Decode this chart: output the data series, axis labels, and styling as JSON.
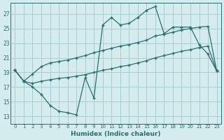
{
  "xlabel": "Humidex (Indice chaleur)",
  "background_color": "#d4ecee",
  "grid_color": "#aacdd2",
  "line_color": "#2a6e6e",
  "x_ticks": [
    0,
    1,
    2,
    3,
    4,
    5,
    6,
    7,
    8,
    9,
    10,
    11,
    12,
    13,
    14,
    15,
    16,
    17,
    18,
    19,
    20,
    21,
    22,
    23
  ],
  "y_ticks": [
    13,
    15,
    17,
    19,
    21,
    23,
    25,
    27
  ],
  "xlim": [
    -0.5,
    23.5
  ],
  "ylim": [
    12.0,
    28.5
  ],
  "line1_x": [
    0,
    1,
    2,
    3,
    4,
    5,
    6,
    7,
    8,
    9,
    10,
    11,
    12,
    13,
    14,
    15,
    16,
    17,
    18,
    19,
    20,
    21,
    22,
    23
  ],
  "line1_y": [
    19.3,
    17.8,
    17.0,
    16.0,
    14.5,
    13.7,
    13.5,
    13.2,
    18.3,
    15.5,
    25.5,
    26.5,
    25.5,
    25.7,
    26.5,
    27.5,
    28.0,
    24.3,
    25.2,
    25.2,
    25.2,
    22.8,
    21.5,
    19.2
  ],
  "line2_x": [
    0,
    1,
    2,
    3,
    4,
    5,
    6,
    7,
    8,
    9,
    10,
    11,
    12,
    13,
    14,
    15,
    16,
    17,
    18,
    19,
    20,
    21,
    22,
    23
  ],
  "line2_y": [
    19.3,
    17.8,
    18.8,
    19.8,
    20.3,
    20.5,
    20.7,
    21.0,
    21.3,
    21.7,
    22.0,
    22.3,
    22.6,
    22.8,
    23.1,
    23.4,
    24.0,
    24.2,
    24.5,
    24.8,
    25.0,
    25.2,
    25.3,
    19.2
  ],
  "line3_x": [
    0,
    1,
    2,
    3,
    4,
    5,
    6,
    7,
    8,
    9,
    10,
    11,
    12,
    13,
    14,
    15,
    16,
    17,
    18,
    19,
    20,
    21,
    22,
    23
  ],
  "line3_y": [
    19.3,
    17.8,
    17.5,
    17.8,
    18.0,
    18.2,
    18.3,
    18.5,
    18.7,
    19.0,
    19.3,
    19.5,
    19.8,
    20.0,
    20.3,
    20.6,
    21.0,
    21.3,
    21.6,
    21.9,
    22.1,
    22.4,
    22.6,
    19.2
  ]
}
